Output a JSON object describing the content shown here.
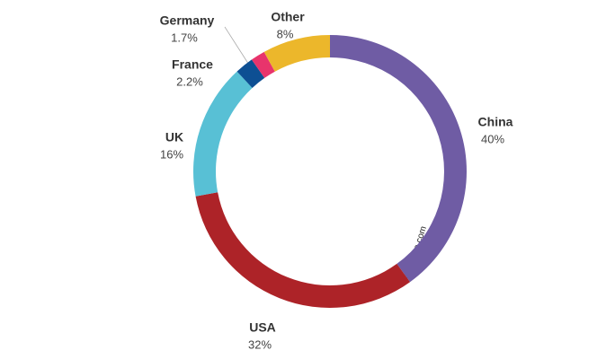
{
  "chart_data": {
    "type": "donut",
    "categories": [
      "China",
      "USA",
      "UK",
      "France",
      "Germany",
      "Other"
    ],
    "values": [
      40,
      32,
      16,
      2.2,
      1.7,
      8
    ],
    "value_labels": [
      "40%",
      "32%",
      "16%",
      "2.2%",
      "1.7%",
      "8%"
    ],
    "colors": [
      "#6f5ca4",
      "#ad2328",
      "#58c0d5",
      "#0d4f93",
      "#e8346c",
      "#ecb72b"
    ],
    "watermark": "©artprice.com"
  }
}
